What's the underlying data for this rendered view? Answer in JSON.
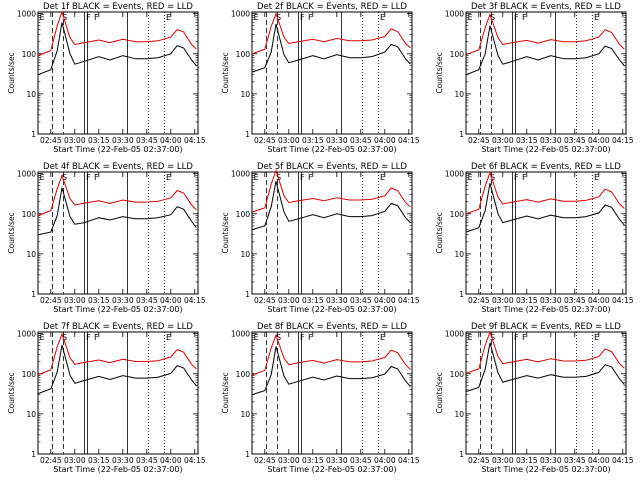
{
  "figure": {
    "xlabel": "Start Time (22-Feb-05 02:37:00)",
    "ylabel": "Counts/sec",
    "legend_colors": {
      "events": "#000000",
      "lld": "#dd0000"
    }
  },
  "chart_data": [
    {
      "type": "line",
      "title": "Det 1f BLACK = Events, RED = LLD",
      "xlabel": "Start Time (22-Feb-05 02:37:00)",
      "ylabel": "Counts/sec",
      "yscale": "log",
      "ylim": [
        1,
        1000
      ],
      "x_ticks": [
        "02:45",
        "03:00",
        "03:15",
        "03:30",
        "03:45",
        "04:00",
        "04:15"
      ],
      "y_ticks": [
        "1",
        "10",
        "100",
        "1000"
      ],
      "x": [
        "02:37",
        "02:45",
        "02:49",
        "02:52",
        "02:57",
        "03:00",
        "03:06",
        "03:15",
        "03:22",
        "03:30",
        "03:38",
        "03:45",
        "03:52",
        "04:00",
        "04:04",
        "04:08",
        "04:13",
        "04:16"
      ],
      "series": [
        {
          "name": "BLACK = Events",
          "color": "#000000",
          "values": [
            30,
            40,
            120,
            600,
            100,
            55,
            65,
            85,
            70,
            90,
            75,
            75,
            80,
            100,
            160,
            140,
            70,
            50
          ]
        },
        {
          "name": "RED = LLD",
          "color": "#dd0000",
          "values": [
            90,
            120,
            500,
            1100,
            250,
            170,
            190,
            220,
            190,
            230,
            200,
            200,
            210,
            260,
            400,
            350,
            170,
            130
          ]
        }
      ],
      "markers": [
        "E",
        "S",
        "F",
        "F",
        "E"
      ]
    },
    {
      "type": "line",
      "title": "Det 2f BLACK = Events, RED = LLD",
      "xlabel": "Start Time (22-Feb-05 02:37:00)",
      "ylabel": "Counts/sec",
      "yscale": "log",
      "ylim": [
        1,
        1000
      ],
      "x_ticks": [
        "02:45",
        "03:00",
        "03:15",
        "03:30",
        "03:45",
        "04:00",
        "04:15"
      ],
      "y_ticks": [
        "1",
        "10",
        "100",
        "1000"
      ],
      "x": [
        "02:37",
        "02:45",
        "02:49",
        "02:52",
        "02:57",
        "03:00",
        "03:06",
        "03:15",
        "03:22",
        "03:30",
        "03:38",
        "03:45",
        "03:52",
        "04:00",
        "04:04",
        "04:08",
        "04:13",
        "04:16"
      ],
      "series": [
        {
          "name": "BLACK = Events",
          "color": "#000000",
          "values": [
            35,
            45,
            110,
            550,
            95,
            60,
            70,
            90,
            75,
            95,
            80,
            80,
            85,
            110,
            170,
            150,
            75,
            55
          ]
        },
        {
          "name": "RED = LLD",
          "color": "#dd0000",
          "values": [
            100,
            130,
            480,
            1000,
            260,
            180,
            200,
            230,
            200,
            240,
            210,
            210,
            220,
            270,
            420,
            360,
            180,
            140
          ]
        }
      ],
      "markers": [
        "E",
        "S",
        "F",
        "F",
        "E"
      ]
    },
    {
      "type": "line",
      "title": "Det 3f BLACK = Events, RED = LLD",
      "xlabel": "Start Time (22-Feb-05 02:37:00)",
      "ylabel": "Counts/sec",
      "yscale": "log",
      "ylim": [
        1,
        1000
      ],
      "x_ticks": [
        "02:45",
        "03:00",
        "03:15",
        "03:30",
        "03:45",
        "04:00",
        "04:15"
      ],
      "y_ticks": [
        "1",
        "10",
        "100",
        "1000"
      ],
      "x": [
        "02:37",
        "02:45",
        "02:49",
        "02:52",
        "02:57",
        "03:00",
        "03:06",
        "03:15",
        "03:22",
        "03:30",
        "03:38",
        "03:45",
        "03:52",
        "04:00",
        "04:04",
        "04:08",
        "04:13",
        "04:16"
      ],
      "series": [
        {
          "name": "BLACK = Events",
          "color": "#000000",
          "values": [
            30,
            40,
            100,
            500,
            90,
            55,
            65,
            85,
            70,
            90,
            75,
            75,
            80,
            100,
            155,
            135,
            70,
            50
          ]
        },
        {
          "name": "RED = LLD",
          "color": "#dd0000",
          "values": [
            95,
            125,
            450,
            950,
            250,
            170,
            190,
            215,
            185,
            225,
            200,
            200,
            210,
            260,
            400,
            340,
            170,
            130
          ]
        }
      ],
      "markers": [
        "E",
        "S",
        "F",
        "F",
        "E"
      ]
    },
    {
      "type": "line",
      "title": "Det 4f BLACK = Events, RED = LLD",
      "xlabel": "Start Time (22-Feb-05 02:37:00)",
      "ylabel": "Counts/sec",
      "yscale": "log",
      "ylim": [
        1,
        1000
      ],
      "x_ticks": [
        "02:45",
        "03:00",
        "03:15",
        "03:30",
        "03:45",
        "04:00",
        "04:15"
      ],
      "y_ticks": [
        "1",
        "10",
        "100",
        "1000"
      ],
      "x": [
        "02:37",
        "02:45",
        "02:49",
        "02:52",
        "02:57",
        "03:00",
        "03:06",
        "03:15",
        "03:22",
        "03:30",
        "03:38",
        "03:45",
        "03:52",
        "04:00",
        "04:04",
        "04:08",
        "04:13",
        "04:16"
      ],
      "series": [
        {
          "name": "BLACK = Events",
          "color": "#000000",
          "values": [
            30,
            35,
            90,
            450,
            85,
            55,
            60,
            80,
            70,
            85,
            75,
            75,
            80,
            95,
            150,
            130,
            65,
            45
          ]
        },
        {
          "name": "RED = LLD",
          "color": "#dd0000",
          "values": [
            90,
            120,
            420,
            900,
            240,
            165,
            185,
            210,
            180,
            220,
            195,
            195,
            205,
            250,
            380,
            330,
            165,
            125
          ]
        }
      ],
      "markers": [
        "E",
        "S",
        "F",
        "F",
        "E"
      ]
    },
    {
      "type": "line",
      "title": "Det 5f BLACK = Events, RED = LLD",
      "xlabel": "Start Time (22-Feb-05 02:37:00)",
      "ylabel": "Counts/sec",
      "yscale": "log",
      "ylim": [
        1,
        1000
      ],
      "x_ticks": [
        "02:45",
        "03:00",
        "03:15",
        "03:30",
        "03:45",
        "04:00",
        "04:15"
      ],
      "y_ticks": [
        "1",
        "10",
        "100",
        "1000"
      ],
      "x": [
        "02:37",
        "02:45",
        "02:49",
        "02:52",
        "02:57",
        "03:00",
        "03:06",
        "03:15",
        "03:22",
        "03:30",
        "03:38",
        "03:45",
        "03:52",
        "04:00",
        "04:04",
        "04:08",
        "04:13",
        "04:16"
      ],
      "series": [
        {
          "name": "BLACK = Events",
          "color": "#000000",
          "values": [
            40,
            50,
            150,
            650,
            110,
            65,
            75,
            95,
            80,
            100,
            85,
            85,
            90,
            115,
            180,
            160,
            80,
            60
          ]
        },
        {
          "name": "RED = LLD",
          "color": "#dd0000",
          "values": [
            110,
            140,
            550,
            1200,
            280,
            190,
            210,
            240,
            210,
            250,
            220,
            220,
            230,
            280,
            440,
            380,
            190,
            150
          ]
        }
      ],
      "markers": [
        "E",
        "S",
        "F",
        "F",
        "E"
      ]
    },
    {
      "type": "line",
      "title": "Det 6f BLACK = Events, RED = LLD",
      "xlabel": "Start Time (22-Feb-05 02:37:00)",
      "ylabel": "Counts/sec",
      "yscale": "log",
      "ylim": [
        1,
        1000
      ],
      "x_ticks": [
        "02:45",
        "03:00",
        "03:15",
        "03:30",
        "03:45",
        "04:00",
        "04:15"
      ],
      "y_ticks": [
        "1",
        "10",
        "100",
        "1000"
      ],
      "x": [
        "02:37",
        "02:45",
        "02:49",
        "02:52",
        "02:57",
        "03:00",
        "03:06",
        "03:15",
        "03:22",
        "03:30",
        "03:38",
        "03:45",
        "03:52",
        "04:00",
        "04:04",
        "04:08",
        "04:13",
        "04:16"
      ],
      "series": [
        {
          "name": "BLACK = Events",
          "color": "#000000",
          "values": [
            35,
            45,
            120,
            580,
            100,
            60,
            70,
            88,
            75,
            92,
            80,
            80,
            85,
            105,
            165,
            145,
            72,
            52
          ]
        },
        {
          "name": "RED = LLD",
          "color": "#dd0000",
          "values": [
            100,
            130,
            500,
            1050,
            260,
            175,
            195,
            225,
            195,
            235,
            205,
            205,
            215,
            265,
            410,
            350,
            175,
            135
          ]
        }
      ],
      "markers": [
        "E",
        "S",
        "F",
        "F",
        "E"
      ]
    },
    {
      "type": "line",
      "title": "Det 7f BLACK = Events, RED = LLD",
      "xlabel": "Start Time (22-Feb-05 02:37:00)",
      "ylabel": "Counts/sec",
      "yscale": "log",
      "ylim": [
        1,
        1000
      ],
      "x_ticks": [
        "02:45",
        "03:00",
        "03:15",
        "03:30",
        "03:45",
        "04:00",
        "04:15"
      ],
      "y_ticks": [
        "1",
        "10",
        "100",
        "1000"
      ],
      "x": [
        "02:37",
        "02:45",
        "02:49",
        "02:52",
        "02:57",
        "03:00",
        "03:06",
        "03:15",
        "03:22",
        "03:30",
        "03:38",
        "03:45",
        "03:52",
        "04:00",
        "04:04",
        "04:08",
        "04:13",
        "04:16"
      ],
      "series": [
        {
          "name": "BLACK = Events",
          "color": "#000000",
          "values": [
            32,
            42,
            110,
            520,
            92,
            58,
            68,
            86,
            72,
            90,
            78,
            78,
            82,
            102,
            160,
            140,
            70,
            50
          ]
        },
        {
          "name": "RED = LLD",
          "color": "#dd0000",
          "values": [
            95,
            125,
            470,
            980,
            250,
            172,
            192,
            220,
            190,
            230,
            202,
            202,
            212,
            262,
            400,
            345,
            172,
            132
          ]
        }
      ],
      "markers": [
        "E",
        "S",
        "F",
        "F",
        "E"
      ]
    },
    {
      "type": "line",
      "title": "Det 8f BLACK = Events, RED = LLD",
      "xlabel": "Start Time (22-Feb-05 02:37:00)",
      "ylabel": "Counts/sec",
      "yscale": "log",
      "ylim": [
        1,
        1000
      ],
      "x_ticks": [
        "02:45",
        "03:00",
        "03:15",
        "03:30",
        "03:45",
        "04:00",
        "04:15"
      ],
      "y_ticks": [
        "1",
        "10",
        "100",
        "1000"
      ],
      "x": [
        "02:37",
        "02:45",
        "02:49",
        "02:52",
        "02:57",
        "03:00",
        "03:06",
        "03:15",
        "03:22",
        "03:30",
        "03:38",
        "03:45",
        "03:52",
        "04:00",
        "04:04",
        "04:08",
        "04:13",
        "04:16"
      ],
      "series": [
        {
          "name": "BLACK = Events",
          "color": "#000000",
          "values": [
            30,
            38,
            95,
            480,
            88,
            55,
            65,
            82,
            70,
            88,
            76,
            76,
            80,
            98,
            152,
            132,
            66,
            48
          ]
        },
        {
          "name": "RED = LLD",
          "color": "#dd0000",
          "values": [
            92,
            122,
            440,
            920,
            245,
            168,
            188,
            215,
            185,
            225,
            198,
            198,
            208,
            255,
            390,
            335,
            168,
            128
          ]
        }
      ],
      "markers": [
        "E",
        "S",
        "F",
        "F",
        "E"
      ]
    },
    {
      "type": "line",
      "title": "Det 9f BLACK = Events, RED = LLD",
      "xlabel": "Start Time (22-Feb-05 02:37:00)",
      "ylabel": "Counts/sec",
      "yscale": "log",
      "ylim": [
        1,
        1000
      ],
      "x_ticks": [
        "02:45",
        "03:00",
        "03:15",
        "03:30",
        "03:45",
        "04:00",
        "04:15"
      ],
      "y_ticks": [
        "1",
        "10",
        "100",
        "1000"
      ],
      "x": [
        "02:37",
        "02:45",
        "02:49",
        "02:52",
        "02:57",
        "03:00",
        "03:06",
        "03:15",
        "03:22",
        "03:30",
        "03:38",
        "03:45",
        "03:52",
        "04:00",
        "04:04",
        "04:08",
        "04:13",
        "04:16"
      ],
      "series": [
        {
          "name": "BLACK = Events",
          "color": "#000000",
          "values": [
            36,
            46,
            130,
            600,
            105,
            62,
            72,
            90,
            78,
            95,
            82,
            82,
            86,
            108,
            168,
            148,
            74,
            54
          ]
        },
        {
          "name": "RED = LLD",
          "color": "#dd0000",
          "values": [
            102,
            132,
            520,
            1100,
            270,
            178,
            198,
            228,
            198,
            238,
            208,
            208,
            218,
            268,
            415,
            355,
            178,
            138
          ]
        }
      ],
      "markers": [
        "E",
        "S",
        "F",
        "F",
        "E"
      ]
    }
  ]
}
